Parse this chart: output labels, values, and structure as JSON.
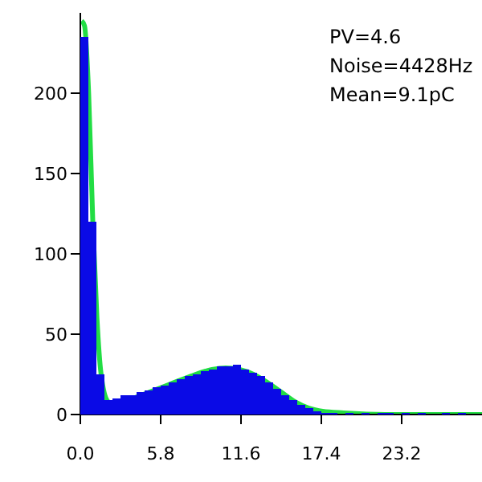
{
  "chart_data": {
    "type": "histogram",
    "bins": [
      0,
      0.58,
      1.16,
      1.74,
      2.32,
      2.9,
      3.48,
      4.06,
      4.64,
      5.22,
      5.8,
      6.38,
      6.96,
      7.54,
      8.12,
      8.7,
      9.28,
      9.86,
      10.44,
      11.02,
      11.6,
      12.18,
      12.76,
      13.34,
      13.92,
      14.5,
      15.08,
      15.66,
      16.24,
      16.82,
      17.4,
      17.98,
      18.56,
      19.14,
      19.72,
      20.3,
      20.88,
      21.46,
      22.04,
      22.62,
      23.2,
      23.78,
      24.36,
      24.94,
      25.52,
      26.1,
      26.68,
      27.26,
      27.84,
      28.42,
      29
    ],
    "series": [
      {
        "color": "#0a0ae6",
        "values": [
          235,
          120,
          25,
          9,
          10,
          12,
          12,
          14,
          15,
          17,
          18,
          20,
          22,
          24,
          25,
          27,
          28,
          30,
          30,
          31,
          28,
          26,
          24,
          20,
          16,
          12,
          9,
          6,
          4,
          2,
          1,
          1,
          0,
          1,
          0,
          1,
          0,
          1,
          1,
          0,
          1,
          0,
          1,
          0,
          0,
          1,
          0,
          1,
          0,
          0
        ]
      },
      {
        "type": "line",
        "color": "#22dd44",
        "x": [
          0.1,
          0.3,
          0.6,
          0.9,
          1.2,
          1.5,
          2,
          2.5,
          3.5,
          5,
          6.5,
          8,
          9.5,
          10.5,
          11.5,
          12.5,
          13.5,
          14.5,
          15.5,
          16.5,
          17.5,
          19,
          22,
          29
        ],
        "values": [
          245,
          242,
          200,
          120,
          60,
          25,
          8,
          6,
          9,
          14,
          19,
          24,
          28,
          29,
          28,
          25,
          20,
          14,
          8,
          4,
          2,
          1,
          0,
          0
        ]
      }
    ],
    "xlim": [
      0,
      29
    ],
    "xticks": [
      {
        "value": 0,
        "label": "0.0"
      },
      {
        "value": 5.8,
        "label": "5.8"
      },
      {
        "value": 11.6,
        "label": "11.6"
      },
      {
        "value": 17.4,
        "label": "17.4"
      },
      {
        "value": 23.2,
        "label": "23.2"
      }
    ],
    "ylim": [
      0,
      250
    ],
    "yticks": [
      0,
      50,
      100,
      150,
      200
    ],
    "grid": false,
    "marker": "none",
    "line_style": "solid",
    "annotations": [
      "PV=4.6",
      "Noise=4428Hz",
      "Mean=9.1pC"
    ]
  }
}
